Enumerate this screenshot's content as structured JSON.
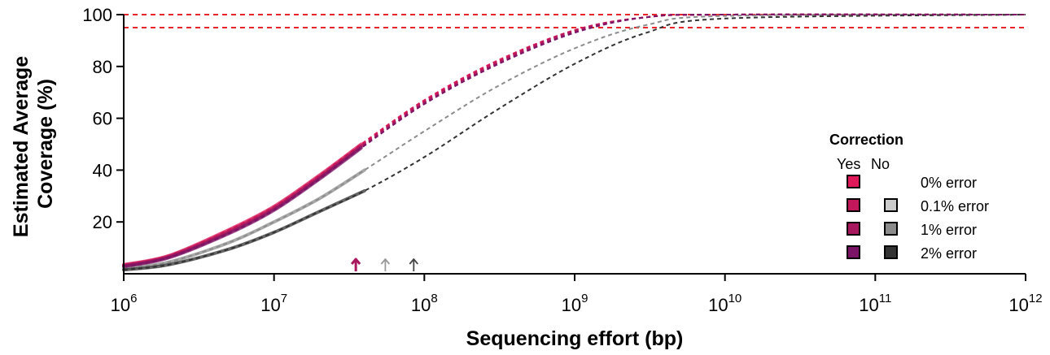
{
  "chart_data": {
    "type": "line",
    "xlabel": "Sequencing effort (bp)",
    "ylabel_lines": [
      "Estimated Average",
      "Coverage (%)"
    ],
    "xscale": "log10",
    "xlim": [
      1000000,
      1000000000000
    ],
    "ylim": [
      0,
      100
    ],
    "x_ticks": [
      {
        "value": 1000000,
        "base": "10",
        "exp": "6"
      },
      {
        "value": 10000000,
        "base": "10",
        "exp": "7"
      },
      {
        "value": 100000000,
        "base": "10",
        "exp": "8"
      },
      {
        "value": 1000000000,
        "base": "10",
        "exp": "9"
      },
      {
        "value": 10000000000,
        "base": "10",
        "exp": "10"
      },
      {
        "value": 100000000000,
        "base": "10",
        "exp": "11"
      },
      {
        "value": 1000000000000,
        "base": "10",
        "exp": "12"
      }
    ],
    "y_ticks": [
      {
        "value": 20,
        "label": "20"
      },
      {
        "value": 40,
        "label": "40"
      },
      {
        "value": 60,
        "label": "60"
      },
      {
        "value": 80,
        "label": "80"
      },
      {
        "value": 100,
        "label": "100"
      }
    ],
    "reference_lines": [
      {
        "y": 100,
        "color": "#e8262a",
        "style": "dashed"
      },
      {
        "y": 95,
        "color": "#e8262a",
        "style": "dashed"
      }
    ],
    "series": [
      {
        "corrected": true,
        "error": "0%",
        "color": "#e0195a",
        "observed": {
          "x": [
            1000000,
            2000000,
            5000000,
            10000000,
            20000000,
            38000000
          ],
          "y": [
            3.5,
            7,
            17,
            26,
            38,
            50
          ]
        },
        "extrapolated": {
          "x": [
            1000000,
            2000000,
            5000000,
            10000000,
            20000000,
            38000000,
            100000000,
            300000000,
            1000000000,
            3000000000,
            10000000000,
            1000000000000
          ],
          "y": [
            3.5,
            7,
            17,
            26,
            38,
            50,
            67,
            82,
            94,
            99,
            100,
            100
          ]
        }
      },
      {
        "corrected": true,
        "error": "0.1%",
        "color": "#c2185b",
        "observed": {
          "x": [
            1000000,
            2000000,
            5000000,
            10000000,
            20000000,
            38000000
          ],
          "y": [
            3.3,
            6.8,
            16.5,
            25.5,
            37.5,
            49.5
          ]
        },
        "extrapolated": {
          "x": [
            1000000,
            2000000,
            5000000,
            10000000,
            20000000,
            38000000,
            100000000,
            300000000,
            1000000000,
            3000000000,
            10000000000,
            1000000000000
          ],
          "y": [
            3.3,
            6.8,
            16.5,
            25.5,
            37.5,
            49.5,
            66.5,
            81.5,
            94,
            99,
            100,
            100
          ]
        }
      },
      {
        "corrected": true,
        "error": "1%",
        "color": "#a8185e",
        "observed": {
          "x": [
            1000000,
            2000000,
            5000000,
            10000000,
            20000000,
            38000000
          ],
          "y": [
            3.0,
            6.5,
            16,
            25,
            37,
            49
          ]
        },
        "extrapolated": {
          "x": [
            1000000,
            2000000,
            5000000,
            10000000,
            20000000,
            38000000,
            100000000,
            300000000,
            1000000000,
            3000000000,
            10000000000,
            1000000000000
          ],
          "y": [
            3.0,
            6.5,
            16,
            25,
            37,
            49,
            66,
            81,
            93.5,
            99,
            100,
            100
          ]
        }
      },
      {
        "corrected": true,
        "error": "2%",
        "color": "#7b1466",
        "observed": {
          "x": [
            1000000,
            2000000,
            5000000,
            10000000,
            20000000,
            38000000
          ],
          "y": [
            2.8,
            6.2,
            15.5,
            24.5,
            36.5,
            48.5
          ]
        },
        "extrapolated": {
          "x": [
            1000000,
            2000000,
            5000000,
            10000000,
            20000000,
            38000000,
            100000000,
            300000000,
            1000000000,
            3000000000,
            10000000000,
            1000000000000
          ],
          "y": [
            2.8,
            6.2,
            15.5,
            24.5,
            36.5,
            48.5,
            65.5,
            80.5,
            93,
            99,
            100,
            100
          ]
        }
      },
      {
        "corrected": false,
        "error": "0.1%",
        "color": "#cccccc",
        "observed": {
          "x": [
            1000000,
            2000000,
            5000000,
            10000000,
            20000000,
            38000000
          ],
          "y": [
            3.0,
            6.5,
            16,
            25,
            37,
            49
          ]
        },
        "extrapolated": {
          "x": [
            1000000,
            2000000,
            5000000,
            10000000,
            20000000,
            38000000,
            100000000,
            300000000,
            1000000000,
            3000000000,
            10000000000,
            1000000000000
          ],
          "y": [
            3.0,
            6.5,
            16,
            25,
            37,
            49,
            66,
            81,
            93.5,
            99,
            100,
            100
          ]
        }
      },
      {
        "corrected": false,
        "error": "1%",
        "color": "#8c8c8c",
        "observed": {
          "x": [
            1000000,
            2000000,
            5000000,
            10000000,
            20000000,
            40000000
          ],
          "y": [
            2.0,
            4.5,
            12,
            20,
            29,
            40
          ]
        },
        "extrapolated": {
          "x": [
            1000000,
            2000000,
            5000000,
            10000000,
            20000000,
            40000000,
            100000000,
            300000000,
            1000000000,
            3000000000,
            10000000000,
            1000000000000
          ],
          "y": [
            2.0,
            4.5,
            12,
            20,
            29,
            40,
            55,
            72,
            87,
            96,
            99.5,
            100
          ]
        }
      },
      {
        "corrected": false,
        "error": "2%",
        "color": "#333333",
        "observed": {
          "x": [
            1000000,
            2000000,
            5000000,
            10000000,
            20000000,
            40000000
          ],
          "y": [
            1.5,
            3.5,
            9.5,
            16,
            24,
            32
          ]
        },
        "extrapolated": {
          "x": [
            1000000,
            2000000,
            5000000,
            10000000,
            20000000,
            40000000,
            100000000,
            300000000,
            1000000000,
            3000000000,
            10000000000,
            1000000000000
          ],
          "y": [
            1.5,
            3.5,
            9.5,
            16,
            24,
            32,
            45,
            63,
            81,
            93,
            98.5,
            100
          ]
        }
      }
    ],
    "arrows": [
      {
        "x": 35000000,
        "color": "#a8185e",
        "weight": "bold"
      },
      {
        "x": 55000000,
        "color": "#999999",
        "weight": "normal"
      },
      {
        "x": 85000000,
        "color": "#444444",
        "weight": "normal"
      }
    ],
    "legend": {
      "title": "Correction",
      "col_yes": "Yes",
      "col_no": "No",
      "placement": "right",
      "rows": [
        {
          "label": "0% error",
          "yes_color": "#e0195a",
          "no_color": null
        },
        {
          "label": "0.1% error",
          "yes_color": "#c2185b",
          "no_color": "#cccccc"
        },
        {
          "label": "1% error",
          "yes_color": "#a8185e",
          "no_color": "#8c8c8c"
        },
        {
          "label": "2% error",
          "yes_color": "#7b1466",
          "no_color": "#333333"
        }
      ]
    }
  }
}
